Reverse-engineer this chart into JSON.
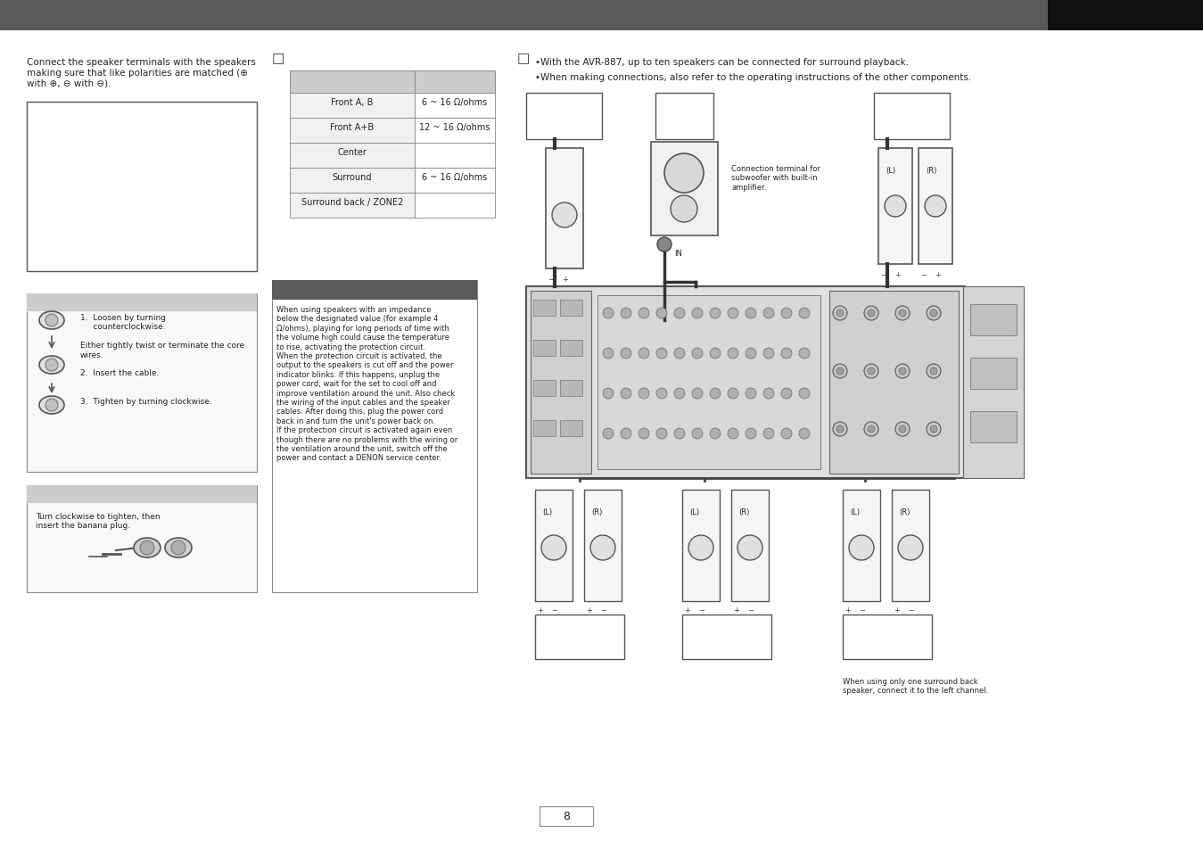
{
  "bg_color": "#ffffff",
  "header_bar_color": "#606060",
  "page_number": "8",
  "intro_text": "Connect the speaker terminals with the speakers\nmaking sure that like polarities are matched (⊕\nwith ⊕, ⊖ with ⊖).",
  "bullet_text_1": "•With the AVR-887, up to ten speakers can be connected for surround playback.",
  "bullet_text_2": "•When making connections, also refer to the operating instructions of the other components.",
  "table_rows": [
    [
      "Front A, B",
      "6 ~ 16 Ω/ohms"
    ],
    [
      "Front A+B",
      "12 ~ 16 Ω/ohms"
    ],
    [
      "Center",
      ""
    ],
    [
      "Surround",
      "6 ~ 16 Ω/ohms"
    ],
    [
      "Surround back / ZONE2",
      ""
    ]
  ],
  "caution_text": "When using speakers with an impedance\nbelow the designated value (for example 4\nΩ/ohms), playing for long periods of time with\nthe volume high could cause the temperature\nto rise, activating the protection circuit.\nWhen the protection circuit is activated, the\noutput to the speakers is cut off and the power\nindicator blinks. If this happens, unplug the\npower cord, wait for the set to cool off and\nimprove ventilation around the unit. Also check\nthe wiring of the input cables and the speaker\ncables. After doing this, plug the power cord\nback in and turn the unit's power back on.\nIf the protection circuit is activated again even\nthough there are no problems with the wiring or\nthe ventilation around the unit, switch off the\npower and contact a DENON service center.",
  "step_text": "1.  Loosen by turning\n     counterclockwise.\n\nEither tightly twist or terminate the core\nwires.\n\n2.  Insert the cable.\n\n\n3.  Tighten by turning clockwise.",
  "banana_text": "Turn clockwise to tighten, then\ninsert the banana plug.",
  "connection_note": "Connection terminal for\nsubwoofer with built-in\namplifier.",
  "surround_back_note": "When using only one surround back\nspeaker, connect it to the left channel.",
  "label_L": "(L)",
  "label_R": "(R)",
  "label_IN": "IN",
  "gray_header": "#5a5a5a",
  "light_gray": "#cccccc",
  "very_light_gray": "#e8e8e8",
  "mid_gray": "#888888",
  "dark_text": "#222222",
  "fs_body": 7.5,
  "fs_small": 6.5,
  "fs_table": 7,
  "fs_note": 6,
  "fs_page": 9
}
